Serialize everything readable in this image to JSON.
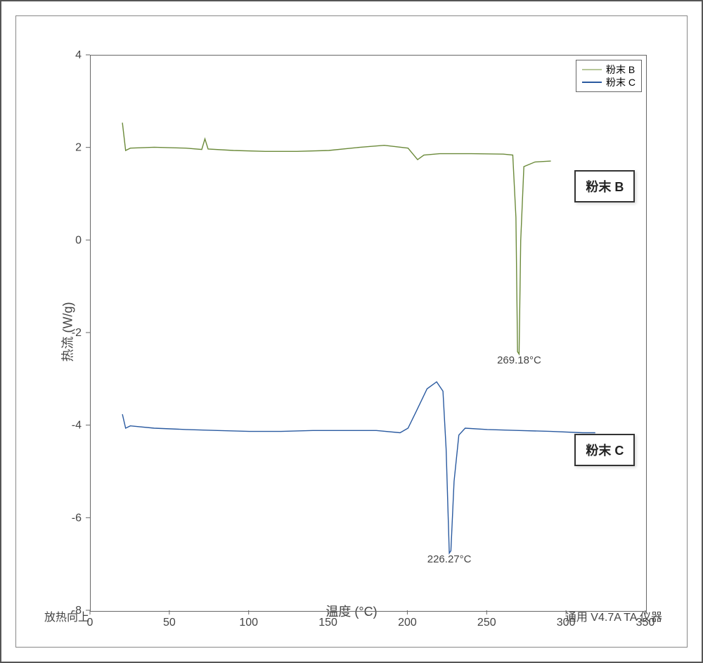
{
  "chart": {
    "type": "line",
    "background_color": "#ffffff",
    "border_color": "#555555",
    "axis_color": "#666666",
    "tick_color": "#444444",
    "label_color": "#444444",
    "xlabel": "温度 (°C)",
    "ylabel": "热流 (W/g)",
    "label_fontsize": 18,
    "tick_fontsize": 16,
    "xlim": [
      0,
      350
    ],
    "ylim": [
      -8,
      4
    ],
    "xticks": [
      0,
      50,
      100,
      150,
      200,
      250,
      300,
      350
    ],
    "yticks": [
      -8,
      -6,
      -4,
      -2,
      0,
      2,
      4
    ],
    "grid": false,
    "line_width": 1.4,
    "series": [
      {
        "name": "粉末 B",
        "color": "#6b8a3a",
        "label_callout": {
          "text": "粉末 B",
          "x": 305,
          "y": 1.25
        },
        "annotation": {
          "text": "269.18°C",
          "x": 270,
          "y": -2.65
        },
        "points": [
          [
            20,
            2.55
          ],
          [
            22,
            1.95
          ],
          [
            25,
            2.0
          ],
          [
            40,
            2.02
          ],
          [
            60,
            2.0
          ],
          [
            70,
            1.97
          ],
          [
            72,
            2.2
          ],
          [
            74,
            1.98
          ],
          [
            90,
            1.95
          ],
          [
            110,
            1.93
          ],
          [
            130,
            1.93
          ],
          [
            150,
            1.95
          ],
          [
            170,
            2.02
          ],
          [
            185,
            2.06
          ],
          [
            200,
            2.0
          ],
          [
            206,
            1.75
          ],
          [
            210,
            1.85
          ],
          [
            220,
            1.88
          ],
          [
            240,
            1.88
          ],
          [
            260,
            1.87
          ],
          [
            266,
            1.85
          ],
          [
            268,
            0.5
          ],
          [
            269,
            -2.4
          ],
          [
            270,
            -2.45
          ],
          [
            271,
            0.0
          ],
          [
            273,
            1.6
          ],
          [
            280,
            1.7
          ],
          [
            290,
            1.72
          ]
        ]
      },
      {
        "name": "粉末 C",
        "color": "#2a5aa0",
        "label_callout": {
          "text": "粉末 C",
          "x": 305,
          "y": -4.45
        },
        "annotation": {
          "text": "226.27°C",
          "x": 226,
          "y": -6.95
        },
        "points": [
          [
            20,
            -3.75
          ],
          [
            22,
            -4.05
          ],
          [
            25,
            -4.0
          ],
          [
            40,
            -4.05
          ],
          [
            60,
            -4.08
          ],
          [
            80,
            -4.1
          ],
          [
            100,
            -4.12
          ],
          [
            120,
            -4.12
          ],
          [
            140,
            -4.1
          ],
          [
            160,
            -4.1
          ],
          [
            180,
            -4.1
          ],
          [
            195,
            -4.15
          ],
          [
            200,
            -4.05
          ],
          [
            205,
            -3.7
          ],
          [
            212,
            -3.2
          ],
          [
            218,
            -3.05
          ],
          [
            222,
            -3.25
          ],
          [
            224,
            -4.5
          ],
          [
            226,
            -6.75
          ],
          [
            227,
            -6.7
          ],
          [
            229,
            -5.2
          ],
          [
            232,
            -4.2
          ],
          [
            236,
            -4.05
          ],
          [
            250,
            -4.08
          ],
          [
            270,
            -4.1
          ],
          [
            290,
            -4.12
          ],
          [
            310,
            -4.15
          ],
          [
            318,
            -4.15
          ]
        ]
      }
    ],
    "legend": {
      "position": "top-right",
      "border_color": "#666666",
      "items": [
        {
          "label": "粉末 B",
          "color": "#b8c89a"
        },
        {
          "label": "粉末 C",
          "color": "#2a5aa0"
        }
      ]
    }
  },
  "footer": {
    "left": "放热向上",
    "right": "通用 V4.7A TA 仪器"
  }
}
